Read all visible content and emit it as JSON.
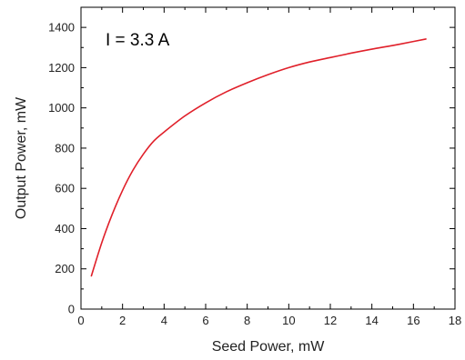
{
  "chart_data": {
    "type": "line",
    "title": "",
    "xlabel": "Seed Power, mW",
    "ylabel": "Output Power, mW",
    "xlim": [
      0,
      18
    ],
    "ylim": [
      0,
      1500
    ],
    "xticks": [
      0,
      2,
      4,
      6,
      8,
      10,
      12,
      14,
      16,
      18
    ],
    "yticks": [
      0,
      200,
      400,
      600,
      800,
      1000,
      1200,
      1400
    ],
    "xtick_labels": [
      "0",
      "2",
      "4",
      "6",
      "8",
      "10",
      "12",
      "14",
      "16",
      "18"
    ],
    "ytick_labels": [
      "0",
      "200",
      "400",
      "600",
      "800",
      "1000",
      "1200",
      "1400"
    ],
    "grid": false,
    "annotation": "I = 3.3 A",
    "series": [
      {
        "color": "#e0202a",
        "x": [
          0.5,
          1.0,
          1.5,
          2.0,
          2.5,
          3.0,
          3.5,
          4.0,
          5.0,
          6.0,
          7.0,
          8.0,
          9.0,
          10.0,
          11.0,
          12.0,
          13.0,
          14.0,
          15.0,
          16.0,
          16.6
        ],
        "y": [
          165,
          330,
          470,
          590,
          690,
          770,
          835,
          880,
          960,
          1025,
          1080,
          1125,
          1165,
          1200,
          1228,
          1250,
          1272,
          1292,
          1310,
          1330,
          1342
        ]
      }
    ]
  }
}
